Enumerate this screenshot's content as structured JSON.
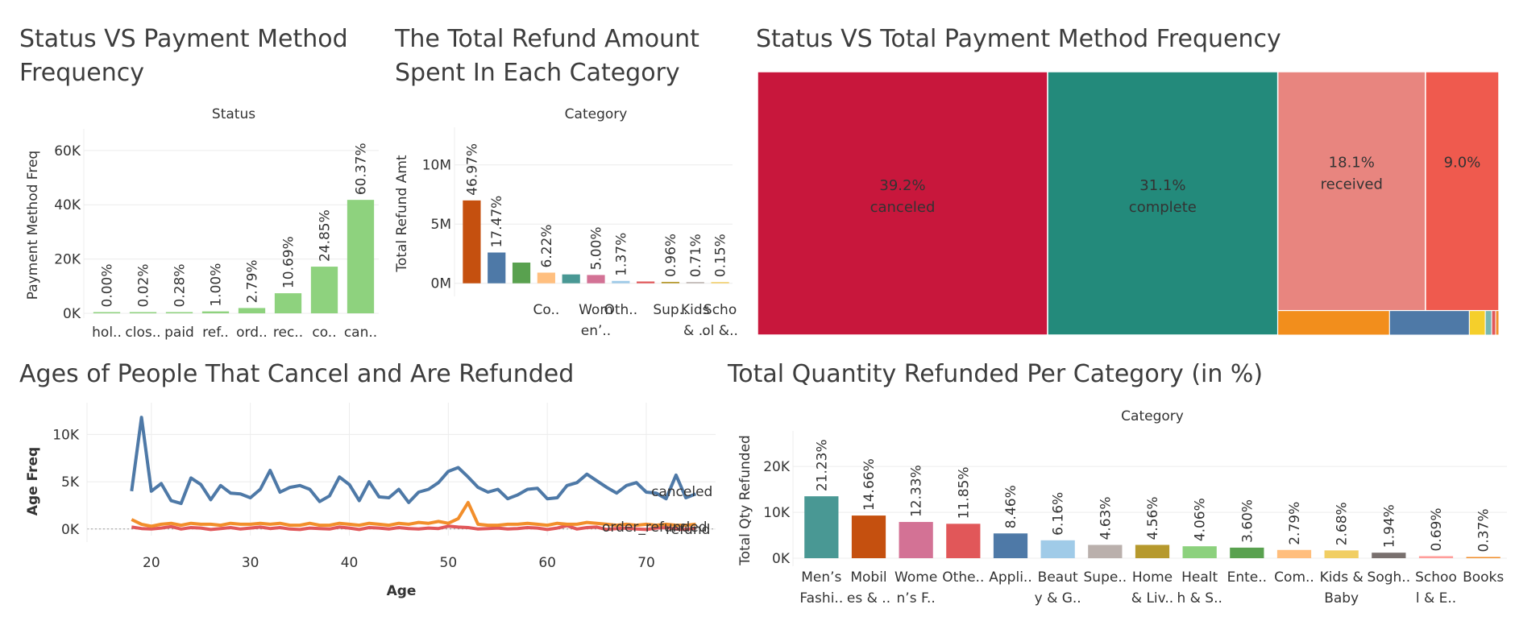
{
  "panels": {
    "status_payment": {
      "title": "Status VS Payment Method Frequency"
    },
    "refund_category": {
      "title": "The Total Refund Amount Spent In Each Category"
    },
    "treemap": {
      "title": "Status VS Total Payment Method Frequency"
    },
    "ages": {
      "title": "Ages of People That Cancel and Are Refunded"
    },
    "qty_refunded": {
      "title": "Total Quantity Refunded Per Category (in %)"
    }
  },
  "chart_data": [
    {
      "id": "status_payment",
      "type": "bar",
      "header": "Status",
      "ylabel": "Payment Method Freq",
      "ylim": [
        0,
        65000
      ],
      "ticks": [
        0,
        20000,
        40000,
        60000
      ],
      "tick_labels": [
        "0K",
        "20K",
        "40K",
        "60K"
      ],
      "categories": [
        "hol..",
        "clos..",
        "paid",
        "ref..",
        "ord..",
        "rec..",
        "co..",
        "can.."
      ],
      "values": [
        5,
        15,
        200,
        700,
        1950,
        7400,
        17200,
        41800
      ],
      "labels": [
        "0.00%",
        "0.02%",
        "0.28%",
        "1.00%",
        "2.79%",
        "10.69%",
        "24.85%",
        "60.37%"
      ],
      "color": "#8ed27e",
      "grid": true
    },
    {
      "id": "refund_category",
      "type": "bar",
      "header": "Category",
      "ylabel": "Total Refund Amt",
      "ylim": [
        -700000,
        12500000
      ],
      "ticks": [
        0,
        5000000,
        10000000
      ],
      "tick_labels": [
        "0M",
        "5M",
        "10M"
      ],
      "values": [
        7000000,
        2600000,
        1750000,
        900000,
        750000,
        700000,
        200000,
        150000,
        120000,
        90000,
        20000
      ],
      "labels": [
        "46.97%",
        "17.47%",
        "",
        "6.22%",
        "",
        "5.00%",
        "1.37%",
        "",
        "0.96%",
        "0.71%",
        "0.15%"
      ],
      "colors": [
        "#c5500f",
        "#4e79a7",
        "#59a14f",
        "#ffbf7f",
        "#499894",
        "#d37295",
        "#a0cbe8",
        "#e15759",
        "#b6992d",
        "#bab0ac",
        "#f1ce63"
      ],
      "xlabels": [
        {
          "index": 3,
          "lines": [
            "Co..",
            ""
          ]
        },
        {
          "index": 5,
          "lines": [
            "Wom",
            "en’.."
          ]
        },
        {
          "index": 6,
          "lines": [
            "Oth..",
            ""
          ]
        },
        {
          "index": 8,
          "lines": [
            "Sup..",
            ""
          ]
        },
        {
          "index": 9,
          "lines": [
            "Kids",
            "& .."
          ]
        },
        {
          "index": 10,
          "lines": [
            "Scho",
            "ol &.."
          ]
        }
      ],
      "grid": true
    },
    {
      "id": "treemap",
      "type": "treemap",
      "blocks": [
        {
          "label": "canceled",
          "pct": "39.2%",
          "value": 39.2,
          "color": "#c8173c"
        },
        {
          "label": "complete",
          "pct": "31.1%",
          "value": 31.1,
          "color": "#238a7b"
        },
        {
          "label": "received",
          "pct": "18.1%",
          "value": 18.1,
          "color": "#e8857f"
        },
        {
          "label": "",
          "pct": "9.0%",
          "value": 9.0,
          "color": "#ef5a4e"
        }
      ],
      "small_blocks": [
        {
          "value": 1.4,
          "color": "#f28e1c"
        },
        {
          "value": 1.0,
          "color": "#4e79a7"
        },
        {
          "value": 0.2,
          "color": "#f5cf2b"
        },
        {
          "value": 0.08,
          "color": "#76b7b2"
        },
        {
          "value": 0.05,
          "color": "#e15759"
        },
        {
          "value": 0.04,
          "color": "#f28e2b"
        }
      ]
    },
    {
      "id": "ages",
      "type": "line",
      "xlabel": "Age",
      "ylabel": "Age Freq",
      "xlim": [
        13.5,
        77
      ],
      "ylim": [
        -700,
        12500
      ],
      "xticks": [
        20,
        30,
        40,
        50,
        60,
        70
      ],
      "yticks": [
        0,
        5000,
        10000
      ],
      "ytick_labels": [
        "0K",
        "5K",
        "10K"
      ],
      "x": [
        18,
        19,
        20,
        21,
        22,
        23,
        24,
        25,
        26,
        27,
        28,
        29,
        30,
        31,
        32,
        33,
        34,
        35,
        36,
        37,
        38,
        39,
        40,
        41,
        42,
        43,
        44,
        45,
        46,
        47,
        48,
        49,
        50,
        51,
        52,
        53,
        54,
        55,
        56,
        57,
        58,
        59,
        60,
        61,
        62,
        63,
        64,
        65,
        66,
        67,
        68,
        69,
        70,
        71,
        72,
        73,
        74,
        75
      ],
      "series": [
        {
          "name": "canceled",
          "color": "#4e79a7",
          "values": [
            4000,
            11800,
            4000,
            4800,
            3000,
            2700,
            5400,
            4700,
            3100,
            4600,
            3800,
            3700,
            3300,
            4200,
            6200,
            3900,
            4400,
            4600,
            4200,
            2900,
            3500,
            5500,
            4700,
            3000,
            5000,
            3400,
            3300,
            4200,
            2800,
            3900,
            4200,
            4900,
            6100,
            6500,
            5500,
            4400,
            3900,
            4200,
            3200,
            3600,
            4200,
            4300,
            3200,
            3300,
            4600,
            4900,
            5800,
            5100,
            4400,
            3800,
            4600,
            4900,
            3900,
            3800,
            3200,
            5700,
            3300,
            3700
          ]
        },
        {
          "name": "order_refunded",
          "color": "#f28e2b",
          "values": [
            1000,
            500,
            300,
            500,
            600,
            400,
            600,
            500,
            500,
            400,
            600,
            500,
            500,
            600,
            500,
            600,
            400,
            400,
            600,
            400,
            400,
            600,
            500,
            400,
            600,
            500,
            400,
            600,
            500,
            700,
            600,
            800,
            600,
            1100,
            2800,
            500,
            400,
            400,
            500,
            500,
            600,
            500,
            400,
            600,
            500,
            500,
            700,
            600,
            500,
            400,
            500,
            400,
            500,
            400,
            500,
            400,
            400,
            500
          ]
        },
        {
          "name": "refund",
          "color": "#e15759",
          "values": [
            200,
            50,
            0,
            100,
            250,
            0,
            150,
            100,
            -50,
            50,
            150,
            0,
            100,
            200,
            50,
            150,
            0,
            -50,
            100,
            50,
            0,
            200,
            100,
            -50,
            150,
            100,
            0,
            150,
            50,
            0,
            100,
            50,
            300,
            200,
            150,
            0,
            50,
            100,
            0,
            50,
            150,
            100,
            -50,
            100,
            350,
            0,
            150,
            200,
            -50,
            50,
            100,
            0,
            -50,
            100,
            150,
            0,
            -50,
            100
          ]
        }
      ],
      "grid": true
    },
    {
      "id": "qty_refunded",
      "type": "bar",
      "header": "Category",
      "ylabel": "Total Qty Refunded",
      "ylim": [
        -700,
        26000
      ],
      "ticks": [
        0,
        10000,
        20000
      ],
      "tick_labels": [
        "0K",
        "10K",
        "20K"
      ],
      "categories": [
        [
          "Men’s",
          "Fashi.."
        ],
        [
          "Mobil",
          "es & .."
        ],
        [
          "Wome",
          "n’s F.."
        ],
        [
          "Othe..",
          ""
        ],
        [
          "Appli..",
          ""
        ],
        [
          "Beaut",
          "y & G.."
        ],
        [
          "Supe..",
          ""
        ],
        [
          "Home",
          "& Liv.."
        ],
        [
          "Healt",
          "h & S.."
        ],
        [
          "Ente..",
          ""
        ],
        [
          "Com..",
          ""
        ],
        [
          "Kids &",
          "Baby"
        ],
        [
          "Sogh..",
          ""
        ],
        [
          "Schoo",
          "l & E.."
        ],
        [
          "Books",
          ""
        ]
      ],
      "values": [
        13500,
        9300,
        7900,
        7500,
        5400,
        3900,
        2900,
        2900,
        2600,
        2300,
        1800,
        1700,
        1200,
        440,
        240
      ],
      "labels": [
        "21.23%",
        "14.66%",
        "12.33%",
        "11.85%",
        "8.46%",
        "6.16%",
        "4.63%",
        "4.56%",
        "4.06%",
        "3.60%",
        "2.79%",
        "2.68%",
        "1.94%",
        "0.69%",
        "0.37%"
      ],
      "colors": [
        "#499894",
        "#c5500f",
        "#d37295",
        "#e15759",
        "#4e79a7",
        "#a0cbe8",
        "#bab0ac",
        "#b6992d",
        "#8cd17d",
        "#59a14f",
        "#ffbe7d",
        "#f1ce63",
        "#79706e",
        "#ff9d9a",
        "#f28e2b"
      ],
      "grid": true
    }
  ]
}
